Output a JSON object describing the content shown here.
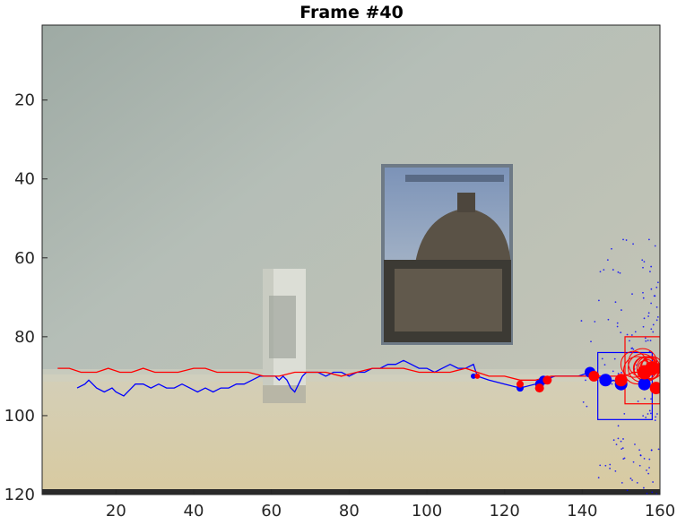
{
  "chart_data": {
    "type": "scatter",
    "title": "Frame #40",
    "xlabel": "",
    "ylabel": "",
    "xlim": [
      1,
      160
    ],
    "ylim": [
      1,
      120
    ],
    "y_reversed": true,
    "grid": false,
    "background": "camera frame image: grey-green wall, white box in front of a poster of a domed building, beige floor",
    "x_ticks": [
      20,
      40,
      60,
      80,
      100,
      120,
      140,
      160
    ],
    "y_ticks": [
      20,
      40,
      60,
      80,
      100,
      120
    ],
    "colors": {
      "blue": "#0000ff",
      "red": "#ff0000"
    },
    "series": [
      {
        "color": "blue",
        "kind": "trajectory",
        "points": [
          [
            10,
            93
          ],
          [
            12,
            92
          ],
          [
            13,
            91
          ],
          [
            15,
            93
          ],
          [
            17,
            94
          ],
          [
            19,
            93
          ],
          [
            20,
            94
          ],
          [
            22,
            95
          ],
          [
            24,
            93
          ],
          [
            25,
            92
          ],
          [
            27,
            92
          ],
          [
            29,
            93
          ],
          [
            31,
            92
          ],
          [
            33,
            93
          ],
          [
            35,
            93
          ],
          [
            37,
            92
          ],
          [
            39,
            93
          ],
          [
            41,
            94
          ],
          [
            43,
            93
          ],
          [
            45,
            94
          ],
          [
            47,
            93
          ],
          [
            49,
            93
          ],
          [
            51,
            92
          ],
          [
            53,
            92
          ],
          [
            55,
            91
          ],
          [
            57,
            90
          ],
          [
            59,
            90
          ],
          [
            61,
            90
          ],
          [
            62,
            91
          ],
          [
            63,
            90
          ],
          [
            64,
            91
          ],
          [
            65,
            93
          ],
          [
            66,
            94
          ],
          [
            67,
            92
          ],
          [
            68,
            90
          ],
          [
            69,
            89
          ],
          [
            70,
            89
          ],
          [
            72,
            89
          ],
          [
            74,
            90
          ],
          [
            76,
            89
          ],
          [
            78,
            89
          ],
          [
            80,
            90
          ],
          [
            82,
            89
          ],
          [
            84,
            89
          ],
          [
            86,
            88
          ],
          [
            88,
            88
          ],
          [
            90,
            87
          ],
          [
            92,
            87
          ],
          [
            94,
            86
          ],
          [
            96,
            87
          ],
          [
            98,
            88
          ],
          [
            100,
            88
          ],
          [
            102,
            89
          ],
          [
            104,
            88
          ],
          [
            106,
            87
          ],
          [
            108,
            88
          ],
          [
            110,
            88
          ],
          [
            112,
            87
          ],
          [
            113,
            90
          ],
          [
            116,
            91
          ],
          [
            120,
            92
          ],
          [
            124,
            93
          ],
          [
            128,
            92
          ],
          [
            130,
            91
          ],
          [
            133,
            90
          ],
          [
            136,
            90
          ],
          [
            139,
            90
          ],
          [
            142,
            89
          ],
          [
            144,
            90
          ],
          [
            146,
            92
          ],
          [
            148,
            91
          ],
          [
            150,
            92
          ]
        ]
      },
      {
        "color": "red",
        "kind": "trajectory",
        "points": [
          [
            5,
            88
          ],
          [
            8,
            88
          ],
          [
            11,
            89
          ],
          [
            15,
            89
          ],
          [
            18,
            88
          ],
          [
            21,
            89
          ],
          [
            24,
            89
          ],
          [
            27,
            88
          ],
          [
            30,
            89
          ],
          [
            33,
            89
          ],
          [
            36,
            89
          ],
          [
            40,
            88
          ],
          [
            43,
            88
          ],
          [
            46,
            89
          ],
          [
            50,
            89
          ],
          [
            54,
            89
          ],
          [
            58,
            90
          ],
          [
            62,
            90
          ],
          [
            66,
            89
          ],
          [
            70,
            89
          ],
          [
            74,
            89
          ],
          [
            78,
            90
          ],
          [
            82,
            89
          ],
          [
            86,
            88
          ],
          [
            90,
            88
          ],
          [
            94,
            88
          ],
          [
            98,
            89
          ],
          [
            102,
            89
          ],
          [
            106,
            89
          ],
          [
            110,
            88
          ],
          [
            113,
            89
          ],
          [
            116,
            90
          ],
          [
            120,
            90
          ],
          [
            124,
            91
          ],
          [
            128,
            91
          ],
          [
            132,
            90
          ],
          [
            136,
            90
          ],
          [
            140,
            90
          ],
          [
            144,
            90
          ],
          [
            148,
            90
          ],
          [
            151,
            90
          ],
          [
            153,
            89
          ],
          [
            155,
            89
          ],
          [
            157,
            88
          ],
          [
            158,
            88
          ],
          [
            159,
            87
          ]
        ]
      },
      {
        "color": "blue",
        "kind": "measurements",
        "points": [
          [
            112,
            90,
            3
          ],
          [
            124,
            93,
            4
          ],
          [
            129,
            92,
            5
          ],
          [
            130,
            91,
            5
          ],
          [
            142,
            89,
            6
          ],
          [
            146,
            91,
            7
          ],
          [
            150,
            92,
            7
          ],
          [
            156,
            92,
            7
          ]
        ]
      },
      {
        "color": "red",
        "kind": "measurements",
        "points": [
          [
            113,
            90,
            3
          ],
          [
            124,
            92,
            4
          ],
          [
            129,
            93,
            5
          ],
          [
            131,
            91,
            5
          ],
          [
            143,
            90,
            6
          ],
          [
            150,
            91,
            7
          ],
          [
            156,
            89,
            8
          ],
          [
            158,
            88,
            8
          ],
          [
            159,
            93,
            7
          ],
          [
            160,
            88,
            6
          ]
        ]
      }
    ],
    "boxes": [
      {
        "color": "blue",
        "x": [
          144,
          158
        ],
        "y": [
          84,
          101
        ]
      },
      {
        "color": "red",
        "x": [
          151,
          160
        ],
        "y": [
          80,
          97
        ]
      }
    ],
    "particles": {
      "color": "blue",
      "x_range": [
        138,
        162
      ],
      "y_range": [
        55,
        120
      ],
      "count": 140
    },
    "red_rings": {
      "center": [
        156,
        88
      ],
      "count": 12
    }
  }
}
